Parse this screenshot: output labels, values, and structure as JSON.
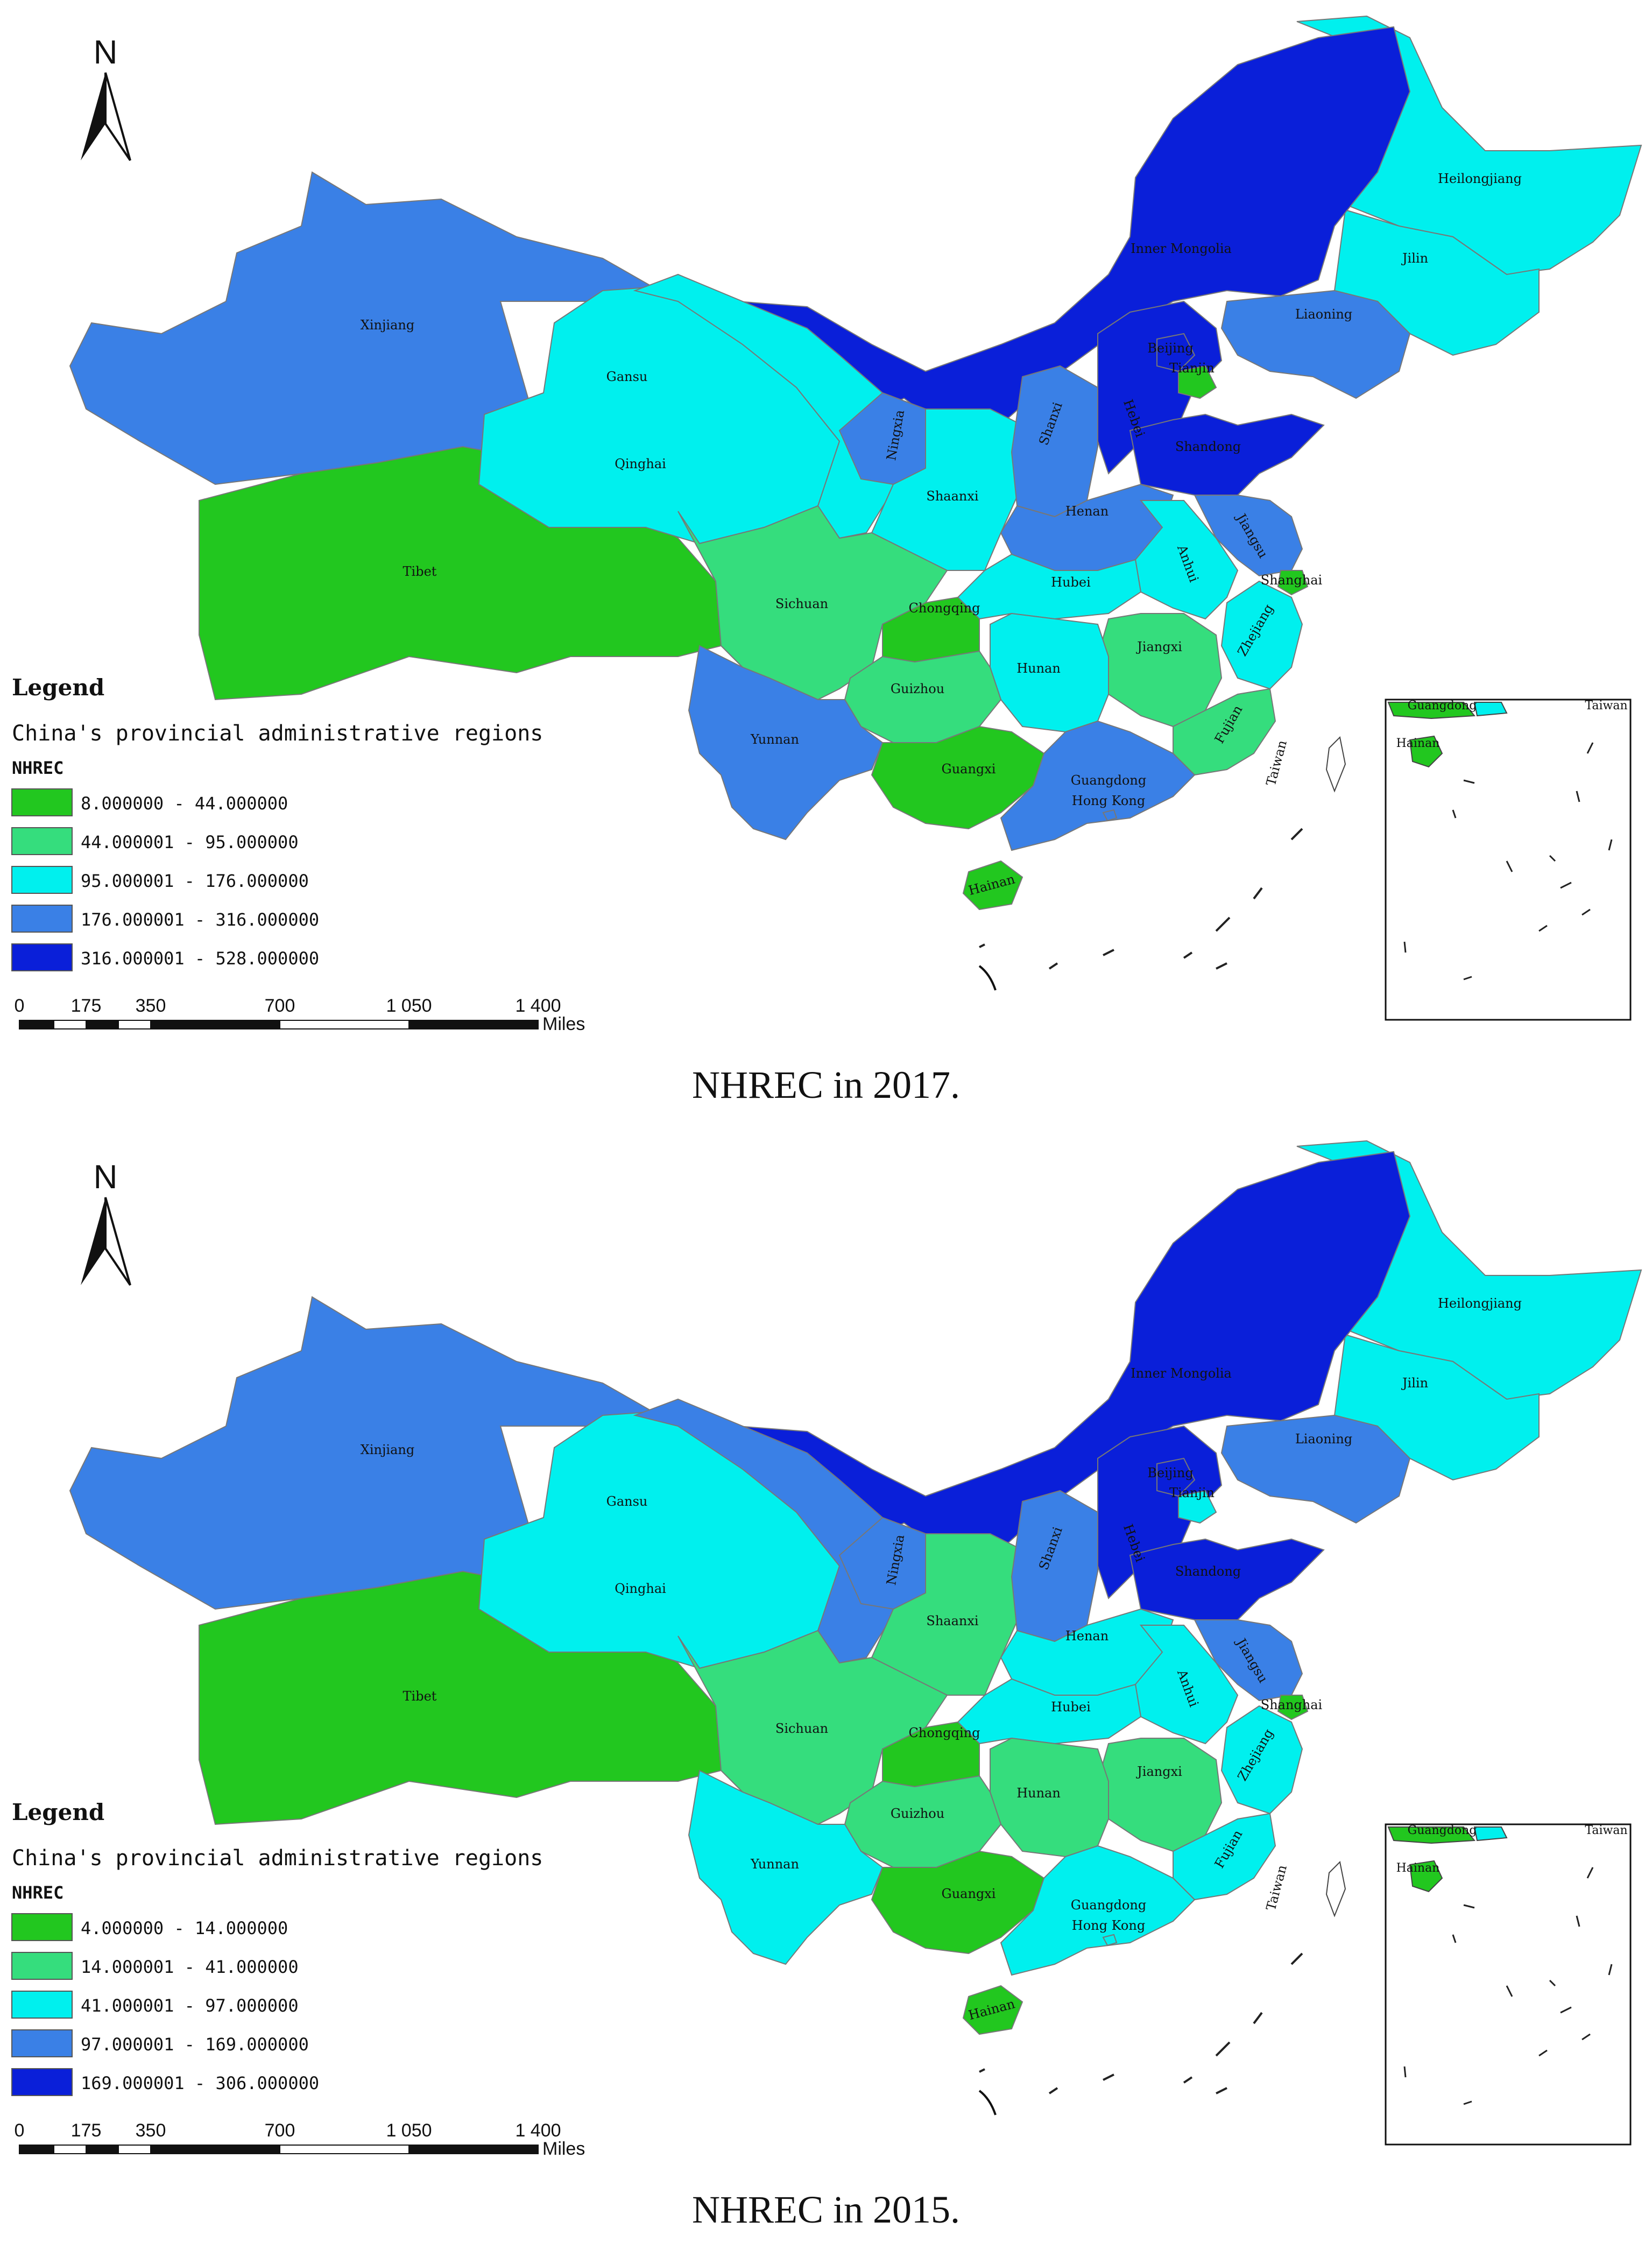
{
  "colors": {
    "class1": "#22c71f",
    "class2": "#35dd7d",
    "class3": "#00f0ee",
    "class4": "#3a80e6",
    "class5": "#0a1fd9"
  },
  "panels": [
    {
      "caption": "NHREC in 2017.",
      "north_label": "N",
      "legend": {
        "title": "Legend",
        "layer": "China's provincial administrative regions",
        "field": "NHREC",
        "classes": [
          "8.000000 - 44.000000",
          "44.000001 - 95.000000",
          "95.000001 - 176.000000",
          "176.000001 - 316.000000",
          "316.000001 - 528.000000"
        ]
      },
      "scale_bar": {
        "ticks": [
          "0",
          "175",
          "350",
          "700",
          "1 050",
          "1 400"
        ],
        "unit": "Miles"
      },
      "provinces": [
        {
          "name": "Heilongjiang",
          "class": 3
        },
        {
          "name": "Jilin",
          "class": 3
        },
        {
          "name": "Liaoning",
          "class": 4
        },
        {
          "name": "Inner Mongolia",
          "class": 5
        },
        {
          "name": "Xinjiang",
          "class": 4
        },
        {
          "name": "Tibet",
          "class": 1
        },
        {
          "name": "Qinghai",
          "class": 3
        },
        {
          "name": "Gansu",
          "class": 3
        },
        {
          "name": "Ningxia",
          "class": 4
        },
        {
          "name": "Shaanxi",
          "class": 3
        },
        {
          "name": "Shanxi",
          "class": 4
        },
        {
          "name": "Hebei",
          "class": 5
        },
        {
          "name": "Beijing",
          "class": 5
        },
        {
          "name": "Tianjin",
          "class": 1
        },
        {
          "name": "Shandong",
          "class": 5
        },
        {
          "name": "Henan",
          "class": 4
        },
        {
          "name": "Jiangsu",
          "class": 4
        },
        {
          "name": "Anhui",
          "class": 3
        },
        {
          "name": "Shanghai",
          "class": 1
        },
        {
          "name": "Hubei",
          "class": 3
        },
        {
          "name": "Sichuan",
          "class": 2
        },
        {
          "name": "Chongqing",
          "class": 1
        },
        {
          "name": "Zhejiang",
          "class": 3
        },
        {
          "name": "Jiangxi",
          "class": 2
        },
        {
          "name": "Hunan",
          "class": 3
        },
        {
          "name": "Guizhou",
          "class": 2
        },
        {
          "name": "Fujian",
          "class": 2
        },
        {
          "name": "Yunnan",
          "class": 4
        },
        {
          "name": "Guangxi",
          "class": 1
        },
        {
          "name": "Guangdong",
          "class": 4
        },
        {
          "name": "Hong Kong",
          "class": 4
        },
        {
          "name": "Hainan",
          "class": 1
        },
        {
          "name": "Taiwan",
          "class": 0
        }
      ],
      "inset_labels": [
        "Guangdong",
        "Taiwan",
        "Hainan"
      ]
    },
    {
      "caption": "NHREC in 2015.",
      "north_label": "N",
      "legend": {
        "title": "Legend",
        "layer": "China's provincial administrative regions",
        "field": "NHREC",
        "classes": [
          "4.000000 - 14.000000",
          "14.000001 - 41.000000",
          "41.000001 - 97.000000",
          "97.000001 - 169.000000",
          "169.000001 - 306.000000"
        ]
      },
      "scale_bar": {
        "ticks": [
          "0",
          "175",
          "350",
          "700",
          "1 050",
          "1 400"
        ],
        "unit": "Miles"
      },
      "provinces": [
        {
          "name": "Heilongjiang",
          "class": 3
        },
        {
          "name": "Jilin",
          "class": 3
        },
        {
          "name": "Liaoning",
          "class": 4
        },
        {
          "name": "Inner Mongolia",
          "class": 5
        },
        {
          "name": "Xinjiang",
          "class": 4
        },
        {
          "name": "Tibet",
          "class": 1
        },
        {
          "name": "Qinghai",
          "class": 3
        },
        {
          "name": "Gansu",
          "class": 4
        },
        {
          "name": "Ningxia",
          "class": 4
        },
        {
          "name": "Shaanxi",
          "class": 2
        },
        {
          "name": "Shanxi",
          "class": 4
        },
        {
          "name": "Hebei",
          "class": 5
        },
        {
          "name": "Beijing",
          "class": 5
        },
        {
          "name": "Tianjin",
          "class": 3
        },
        {
          "name": "Shandong",
          "class": 5
        },
        {
          "name": "Henan",
          "class": 3
        },
        {
          "name": "Jiangsu",
          "class": 4
        },
        {
          "name": "Anhui",
          "class": 3
        },
        {
          "name": "Shanghai",
          "class": 1
        },
        {
          "name": "Hubei",
          "class": 3
        },
        {
          "name": "Sichuan",
          "class": 2
        },
        {
          "name": "Chongqing",
          "class": 1
        },
        {
          "name": "Zhejiang",
          "class": 3
        },
        {
          "name": "Jiangxi",
          "class": 2
        },
        {
          "name": "Hunan",
          "class": 2
        },
        {
          "name": "Guizhou",
          "class": 2
        },
        {
          "name": "Fujian",
          "class": 3
        },
        {
          "name": "Yunnan",
          "class": 3
        },
        {
          "name": "Guangxi",
          "class": 1
        },
        {
          "name": "Guangdong",
          "class": 3
        },
        {
          "name": "Hong Kong",
          "class": 3
        },
        {
          "name": "Hainan",
          "class": 1
        },
        {
          "name": "Taiwan",
          "class": 0
        }
      ],
      "inset_labels": [
        "Guangdong",
        "Taiwan",
        "Hainan"
      ]
    }
  ]
}
